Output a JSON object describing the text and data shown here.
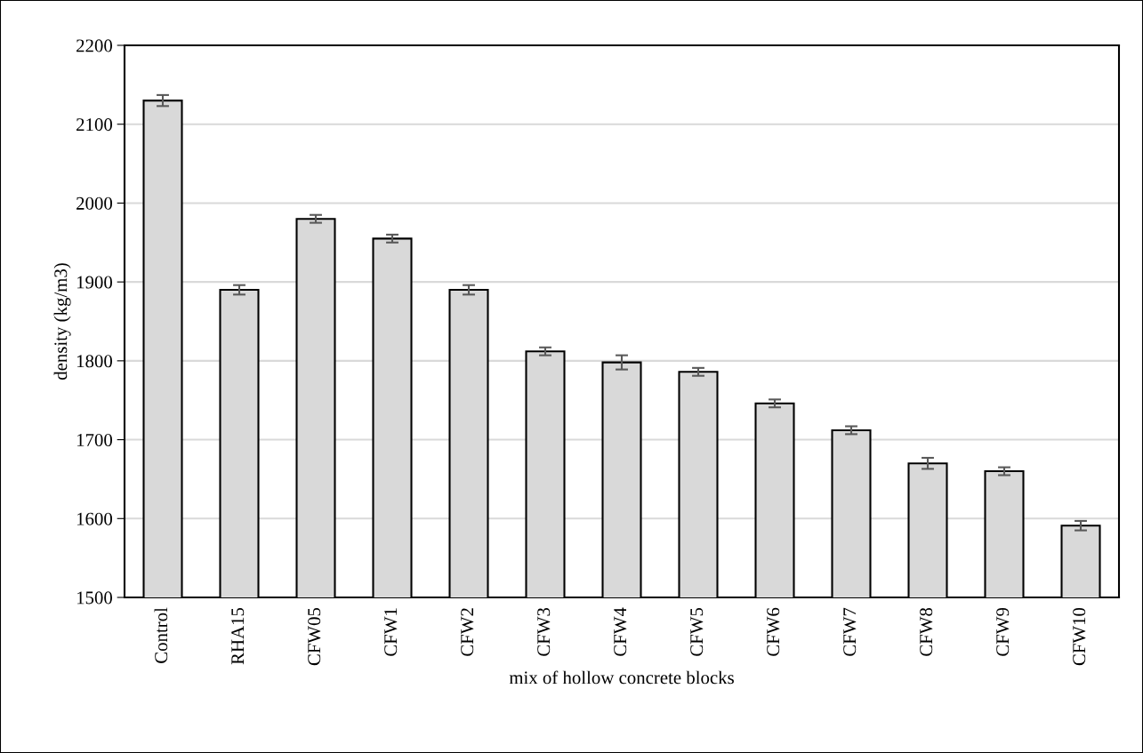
{
  "chart_data": {
    "type": "bar",
    "xlabel": "mix of hollow concrete blocks",
    "ylabel": "density (kg/m3)",
    "categories": [
      "Control",
      "RHA15",
      "CFW05",
      "CFW1",
      "CFW2",
      "CFW3",
      "CFW4",
      "CFW5",
      "CFW6",
      "CFW7",
      "CFW8",
      "CFW9",
      "CFW10"
    ],
    "values": [
      2130,
      1890,
      1980,
      1955,
      1890,
      1812,
      1798,
      1786,
      1746,
      1712,
      1670,
      1660,
      1591
    ],
    "errors": [
      7,
      6,
      5,
      5,
      6,
      5,
      9,
      5,
      5,
      5,
      7,
      5,
      6
    ],
    "color": "#d9d9d9",
    "ylim": [
      1500,
      2200
    ],
    "yticks": [
      1500,
      1600,
      1700,
      1800,
      1900,
      2000,
      2100,
      2200
    ],
    "grid": "y"
  }
}
